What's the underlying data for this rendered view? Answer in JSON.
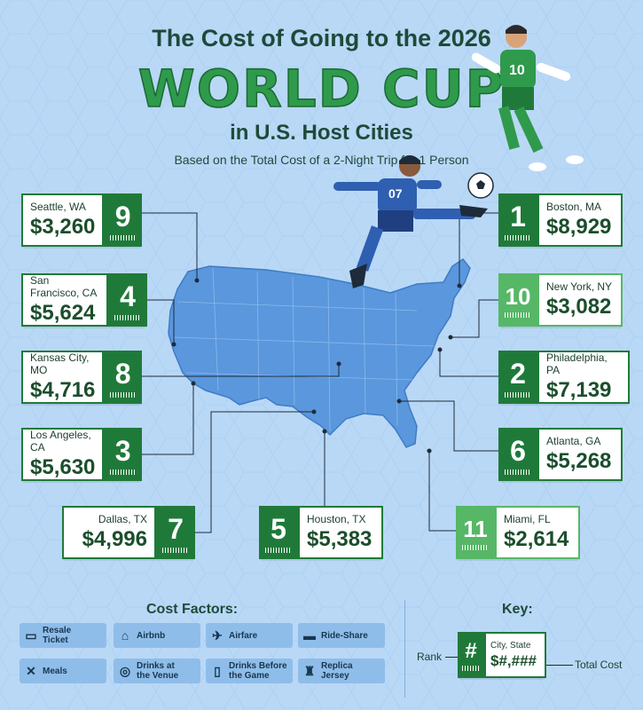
{
  "title": {
    "line1": "The Cost of Going to the 2026",
    "line2": "WORLD CUP",
    "line3": "in U.S. Host Cities",
    "subtitle": "Based on the Total Cost of a 2-Night Trip for 1 Person"
  },
  "cities": [
    {
      "city": "Seattle, WA",
      "rank": "9",
      "cost": "$3,260"
    },
    {
      "city": "San Francisco, CA",
      "rank": "4",
      "cost": "$5,624"
    },
    {
      "city": "Kansas City, MO",
      "rank": "8",
      "cost": "$4,716"
    },
    {
      "city": "Los Angeles, CA",
      "rank": "3",
      "cost": "$5,630"
    },
    {
      "city": "Dallas, TX",
      "rank": "7",
      "cost": "$4,996"
    },
    {
      "city": "Houston, TX",
      "rank": "5",
      "cost": "$5,383"
    },
    {
      "city": "Miami, FL",
      "rank": "11",
      "cost": "$2,614"
    },
    {
      "city": "Atlanta, GA",
      "rank": "6",
      "cost": "$5,268"
    },
    {
      "city": "Philadelphia, PA",
      "rank": "2",
      "cost": "$7,139"
    },
    {
      "city": "New York, NY",
      "rank": "10",
      "cost": "$3,082"
    },
    {
      "city": "Boston, MA",
      "rank": "1",
      "cost": "$8,929"
    }
  ],
  "players": {
    "front_number": "10",
    "kicker_number": "07"
  },
  "cost_factors": {
    "title": "Cost Factors:",
    "items": [
      {
        "label": "Resale\nTicket",
        "icon": "ticket-icon"
      },
      {
        "label": "Airbnb",
        "icon": "house-icon"
      },
      {
        "label": "Airfare",
        "icon": "airplane-icon"
      },
      {
        "label": "Ride-Share",
        "icon": "car-icon"
      },
      {
        "label": "Meals",
        "icon": "utensils-icon"
      },
      {
        "label": "Drinks at\nthe Venue",
        "icon": "stadium-icon"
      },
      {
        "label": "Drinks Before\nthe Game",
        "icon": "cup-icon"
      },
      {
        "label": "Replica\nJersey",
        "icon": "jersey-icon"
      }
    ]
  },
  "key": {
    "title": "Key:",
    "rank_label": "Rank",
    "rank_placeholder": "#",
    "city_placeholder": "City, State",
    "cost_placeholder": "$#,###",
    "total_label": "Total Cost"
  },
  "colors": {
    "dark_green": "#1f7a3a",
    "light_green": "#56b767",
    "background": "#b9d8f6",
    "map": "#5a97dd"
  }
}
